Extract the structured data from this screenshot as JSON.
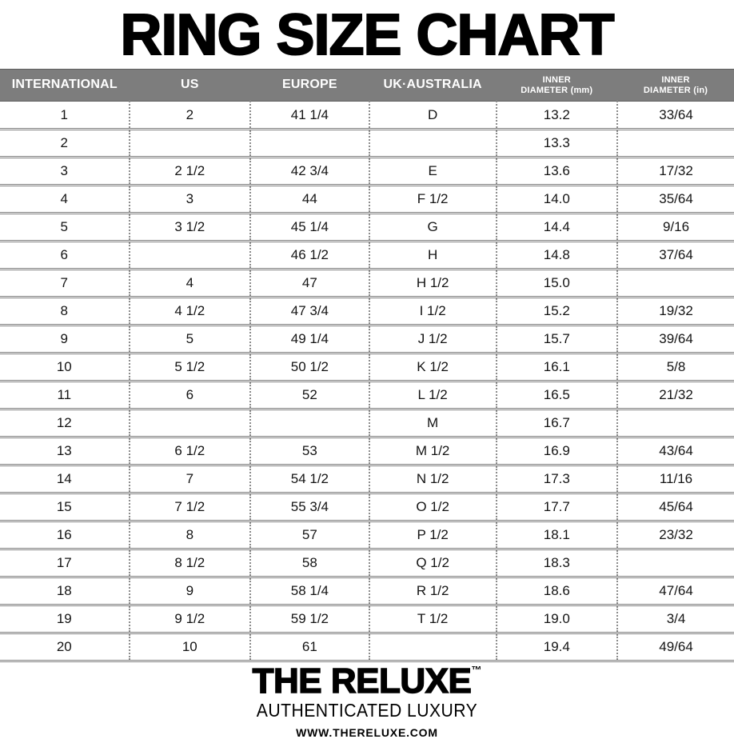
{
  "title": "RING SIZE CHART",
  "colors": {
    "header_bg": "#7d7d7d",
    "header_text": "#ffffff",
    "row_line": "#7f7f7f",
    "column_dots": "#8c8c8c",
    "body_text": "#141414",
    "background": "#ffffff"
  },
  "table": {
    "header_display": [
      [
        "INTERNATIONAL"
      ],
      [
        "US"
      ],
      [
        "EUROPE"
      ],
      [
        "UK·AUSTRALIA"
      ],
      [
        "INNER",
        "DIAMETER (mm)"
      ],
      [
        "INNER",
        "DIAMETER (in)"
      ]
    ]
  },
  "chart_data": {
    "type": "table",
    "title": "RING SIZE CHART",
    "columns": [
      "INTERNATIONAL",
      "US",
      "EUROPE",
      "UK·AUSTRALIA",
      "INNER DIAMETER (mm)",
      "INNER DIAMETER (in)"
    ],
    "rows": [
      [
        "1",
        "2",
        "41 1/4",
        "D",
        "13.2",
        "33/64"
      ],
      [
        "2",
        "",
        "",
        "",
        "13.3",
        ""
      ],
      [
        "3",
        "2 1/2",
        "42 3/4",
        "E",
        "13.6",
        "17/32"
      ],
      [
        "4",
        "3",
        "44",
        "F 1/2",
        "14.0",
        "35/64"
      ],
      [
        "5",
        "3 1/2",
        "45 1/4",
        "G",
        "14.4",
        "9/16"
      ],
      [
        "6",
        "",
        "46 1/2",
        "H",
        "14.8",
        "37/64"
      ],
      [
        "7",
        "4",
        "47",
        "H 1/2",
        "15.0",
        ""
      ],
      [
        "8",
        "4 1/2",
        "47 3/4",
        "I 1/2",
        "15.2",
        "19/32"
      ],
      [
        "9",
        "5",
        "49 1/4",
        "J 1/2",
        "15.7",
        "39/64"
      ],
      [
        "10",
        "5 1/2",
        "50 1/2",
        "K 1/2",
        "16.1",
        "5/8"
      ],
      [
        "11",
        "6",
        "52",
        "L 1/2",
        "16.5",
        "21/32"
      ],
      [
        "12",
        "",
        "",
        "M",
        "16.7",
        ""
      ],
      [
        "13",
        "6 1/2",
        "53",
        "M 1/2",
        "16.9",
        "43/64"
      ],
      [
        "14",
        "7",
        "54 1/2",
        "N 1/2",
        "17.3",
        "11/16"
      ],
      [
        "15",
        "7 1/2",
        "55 3/4",
        "O 1/2",
        "17.7",
        "45/64"
      ],
      [
        "16",
        "8",
        "57",
        "P 1/2",
        "18.1",
        "23/32"
      ],
      [
        "17",
        "8 1/2",
        "58",
        "Q 1/2",
        "18.3",
        ""
      ],
      [
        "18",
        "9",
        "58 1/4",
        "R 1/2",
        "18.6",
        "47/64"
      ],
      [
        "19",
        "9 1/2",
        "59 1/2",
        "T 1/2",
        "19.0",
        "3/4"
      ],
      [
        "20",
        "10",
        "61",
        "",
        "19.4",
        "49/64"
      ]
    ]
  },
  "footer": {
    "brand": "THE RELUXE",
    "trademark": "™",
    "tagline": "AUTHENTICATED LUXURY",
    "website": "WWW.THERELUXE.COM"
  }
}
